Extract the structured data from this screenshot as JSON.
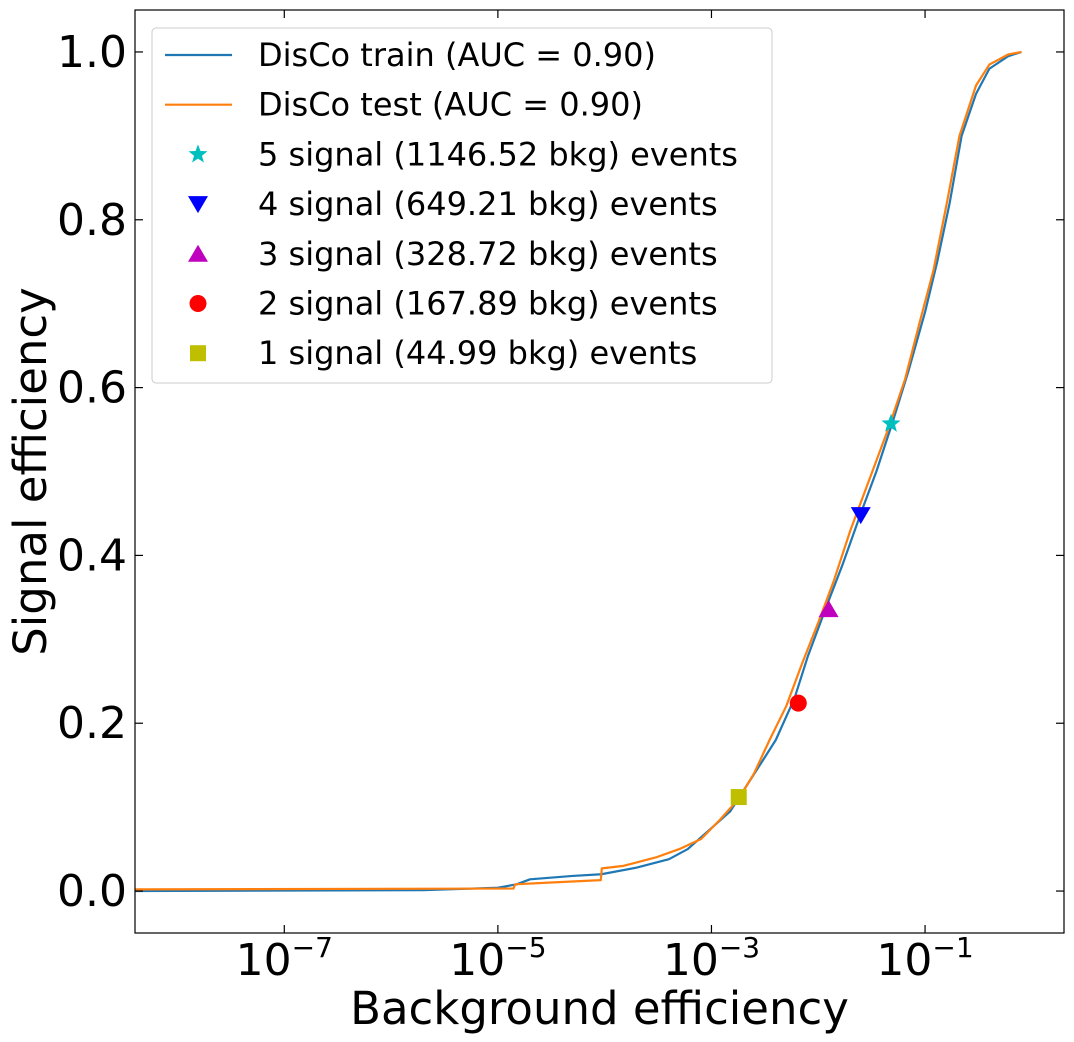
{
  "chart_data": {
    "type": "line",
    "xscale": "log",
    "xlabel": "Background efficiency",
    "ylabel": "Signal efficiency",
    "xlim": [
      "4e-9",
      "2.0"
    ],
    "ylim": [
      -0.05,
      1.05
    ],
    "xticks": [
      {
        "base": "10",
        "exp": "−7",
        "value": 1e-07
      },
      {
        "base": "10",
        "exp": "−5",
        "value": 1e-05
      },
      {
        "base": "10",
        "exp": "−3",
        "value": 0.001
      },
      {
        "base": "10",
        "exp": "−1",
        "value": 0.1
      }
    ],
    "yticks": [
      {
        "label": "0.0",
        "value": 0.0
      },
      {
        "label": "0.2",
        "value": 0.2
      },
      {
        "label": "0.4",
        "value": 0.4
      },
      {
        "label": "0.6",
        "value": 0.6
      },
      {
        "label": "0.8",
        "value": 0.8
      },
      {
        "label": "1.0",
        "value": 1.0
      }
    ],
    "grid": false,
    "legend_position": "top-left",
    "series": [
      {
        "name": "DisCo train (AUC = 0.90)",
        "color": "#1f77b4",
        "x": [
          4e-09,
          2e-06,
          1e-05,
          1.5e-05,
          2e-05,
          5e-05,
          9.3e-05,
          0.0002,
          0.0004,
          0.0006,
          0.001,
          0.0015,
          0.002,
          0.003,
          0.004,
          0.006,
          0.008,
          0.012,
          0.017,
          0.025,
          0.035,
          0.05,
          0.07,
          0.1,
          0.13,
          0.17,
          0.22,
          0.3,
          0.4,
          0.6,
          0.8
        ],
        "y": [
          0.0,
          0.001,
          0.004,
          0.008,
          0.014,
          0.018,
          0.02,
          0.028,
          0.038,
          0.05,
          0.075,
          0.095,
          0.12,
          0.155,
          0.18,
          0.23,
          0.28,
          0.34,
          0.39,
          0.45,
          0.5,
          0.56,
          0.62,
          0.69,
          0.75,
          0.82,
          0.9,
          0.95,
          0.98,
          0.995,
          1.0
        ]
      },
      {
        "name": "DisCo test (AUC = 0.90)",
        "color": "#ff7f0e",
        "x": [
          4e-09,
          1.4e-05,
          1.45e-05,
          3e-05,
          9.2e-05,
          9.4e-05,
          0.00015,
          0.0003,
          0.0005,
          0.0008,
          0.0012,
          0.0018,
          0.0025,
          0.0035,
          0.005,
          0.007,
          0.01,
          0.014,
          0.02,
          0.03,
          0.045,
          0.065,
          0.09,
          0.12,
          0.16,
          0.21,
          0.3,
          0.4,
          0.6,
          0.8
        ],
        "y": [
          0.002,
          0.003,
          0.008,
          0.01,
          0.013,
          0.027,
          0.03,
          0.04,
          0.05,
          0.062,
          0.085,
          0.11,
          0.14,
          0.18,
          0.22,
          0.27,
          0.32,
          0.37,
          0.43,
          0.49,
          0.55,
          0.61,
          0.68,
          0.74,
          0.82,
          0.9,
          0.96,
          0.985,
          0.997,
          1.0
        ]
      }
    ],
    "markers": [
      {
        "name": "5 signal (1146.52 bkg) events",
        "shape": "star",
        "color": "#00bfbf",
        "x": 0.048,
        "y": 0.557
      },
      {
        "name": "4 signal (649.21 bkg) events",
        "shape": "triangle-down",
        "color": "#0000ff",
        "x": 0.025,
        "y": 0.448
      },
      {
        "name": "3 signal (328.72 bkg) events",
        "shape": "triangle-up",
        "color": "#bf00bf",
        "x": 0.0125,
        "y": 0.336
      },
      {
        "name": "2 signal (167.89 bkg) events",
        "shape": "circle",
        "color": "#ff0000",
        "x": 0.0065,
        "y": 0.224
      },
      {
        "name": "1 signal (44.99 bkg) events",
        "shape": "square",
        "color": "#bfbf00",
        "x": 0.0018,
        "y": 0.112
      }
    ]
  }
}
